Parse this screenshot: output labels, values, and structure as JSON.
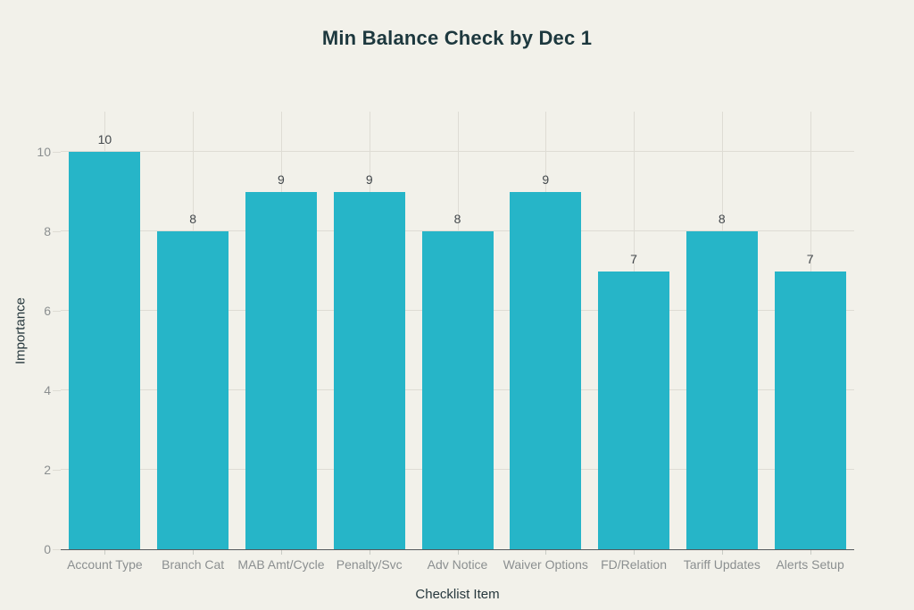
{
  "chart_data": {
    "type": "bar",
    "title": "Min Balance Check by Dec 1",
    "xlabel": "Checklist Item",
    "ylabel": "Importance",
    "categories": [
      "Account Type",
      "Branch Cat",
      "MAB Amt/Cycle",
      "Penalty/Svc",
      "Adv Notice",
      "Waiver Options",
      "FD/Relation",
      "Tariff Updates",
      "Alerts Setup"
    ],
    "values": [
      10,
      8,
      9,
      9,
      8,
      9,
      7,
      8,
      7
    ],
    "ylim": [
      0,
      10
    ],
    "yticks": [
      0,
      2,
      4,
      6,
      8,
      10
    ],
    "grid": true,
    "legend": "none",
    "value_labels": true
  },
  "colors": {
    "background": "#f2f1ea",
    "bar": "#26b5c8",
    "title": "#1d383e",
    "axis_title": "#27383d",
    "value_label": "#43484c",
    "tick_label": "#8b8f90",
    "gridline": "#dedcd4",
    "baseline": "#55595c",
    "xtick_mark": "#c9ccc5"
  }
}
